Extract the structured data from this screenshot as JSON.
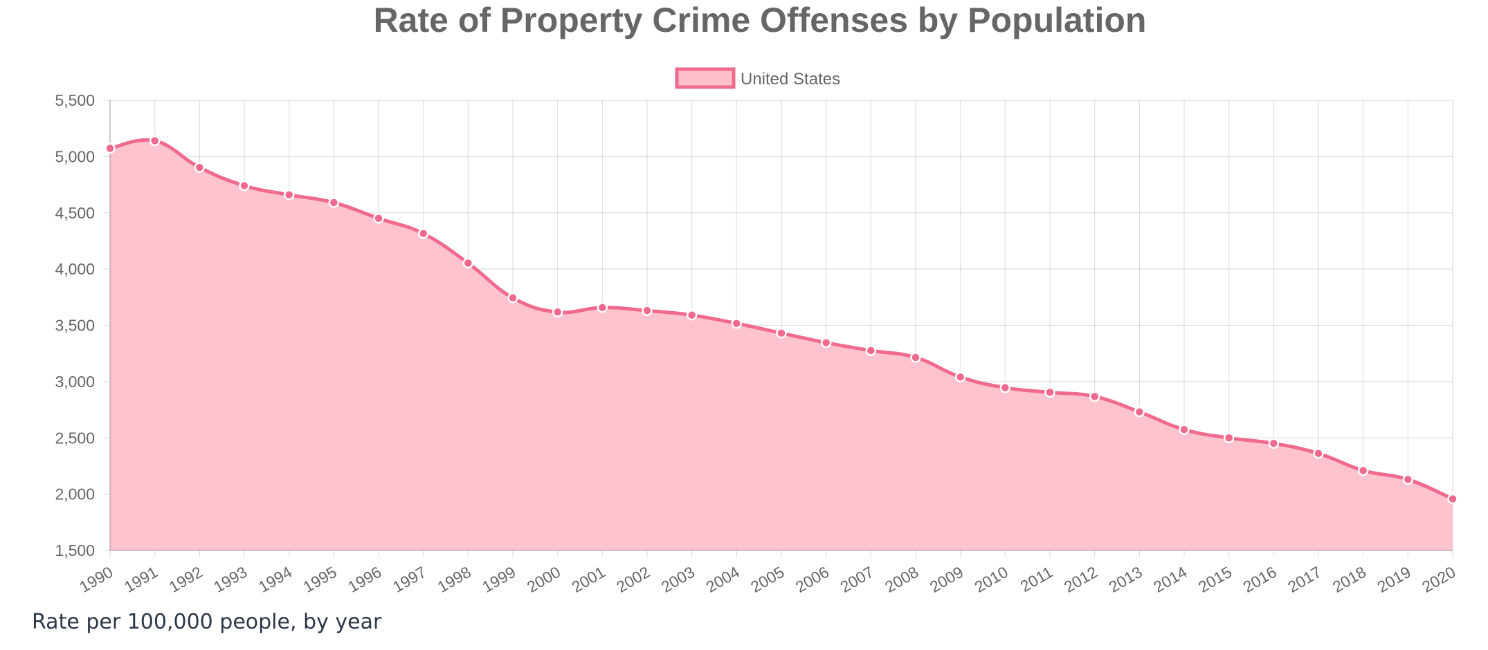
{
  "chart_data": {
    "type": "area",
    "title": "Rate of Property Crime Offenses by Population",
    "xlabel": "",
    "ylabel": "",
    "ylim": [
      1500,
      5500
    ],
    "yticks": [
      "5,500",
      "5,000",
      "4,500",
      "4,000",
      "3,500",
      "3,000",
      "2,500",
      "2,000",
      "1,500"
    ],
    "ytick_values": [
      5500,
      5000,
      4500,
      4000,
      3500,
      3000,
      2500,
      2000,
      1500
    ],
    "grid": true,
    "legend_position": "top-center",
    "categories": [
      "1990",
      "1991",
      "1992",
      "1993",
      "1994",
      "1995",
      "1996",
      "1997",
      "1998",
      "1999",
      "2000",
      "2001",
      "2002",
      "2003",
      "2004",
      "2005",
      "2006",
      "2007",
      "2008",
      "2009",
      "2010",
      "2011",
      "2012",
      "2013",
      "2014",
      "2015",
      "2016",
      "2017",
      "2018",
      "2019",
      "2020"
    ],
    "series": [
      {
        "name": "United States",
        "color": "#f06a8e",
        "fill": "#ffc0cd",
        "values": [
          5073,
          5140,
          4903,
          4741,
          4660,
          4591,
          4451,
          4316,
          4053,
          3744,
          3618,
          3658,
          3631,
          3591,
          3517,
          3431,
          3346,
          3276,
          3215,
          3041,
          2946,
          2905,
          2868,
          2731,
          2574,
          2500,
          2451,
          2362,
          2210,
          2131,
          1958
        ]
      }
    ]
  },
  "caption": "Rate per 100,000 people, by year"
}
